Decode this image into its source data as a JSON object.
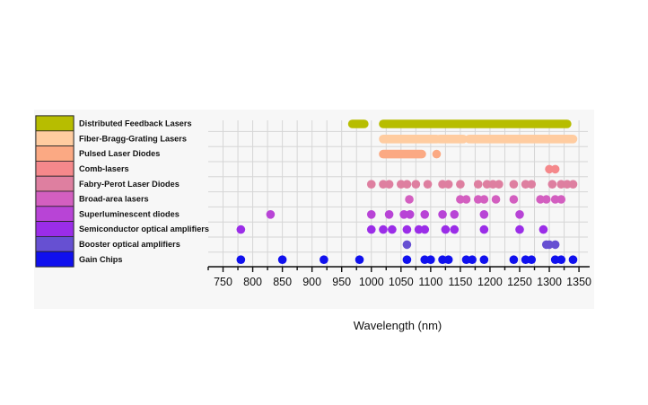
{
  "chart_data": {
    "type": "scatter",
    "xlabel": "Wavelength (nm)",
    "ylabel": "",
    "xlim": [
      725,
      1365
    ],
    "xticks": [
      750,
      800,
      850,
      900,
      950,
      1000,
      1050,
      1100,
      1150,
      1200,
      1250,
      1300,
      1350
    ],
    "grid": true,
    "legend_placement": "left",
    "categories": [
      "Distributed Feedback Lasers",
      "Fiber-Bragg-Grating Lasers",
      "Pulsed Laser Diodes",
      "Comb-lasers",
      "Fabry-Perot Laser Diodes",
      "Broad-area lasers",
      "Superluminescent diodes",
      "Semiconductor optical amplifiers",
      "Booster optical amplifiers",
      "Gain Chips"
    ],
    "colors": [
      "#b7bd00",
      "#ffcca0",
      "#fba983",
      "#f5888b",
      "#de7fa0",
      "#d35fc0",
      "#b844d6",
      "#9b2de8",
      "#6650d2",
      "#1010ee"
    ],
    "series": [
      {
        "name": "Distributed Feedback Lasers",
        "ranges": [
          [
            968,
            988
          ],
          [
            1020,
            1330
          ]
        ],
        "points": []
      },
      {
        "name": "Fiber-Bragg-Grating Lasers",
        "ranges": [
          [
            1020,
            1110
          ],
          [
            1115,
            1155
          ],
          [
            1165,
            1340
          ]
        ],
        "points": []
      },
      {
        "name": "Pulsed Laser Diodes",
        "ranges": [
          [
            1020,
            1085
          ]
        ],
        "points": [
          1110
        ]
      },
      {
        "name": "Comb-lasers",
        "ranges": [],
        "points": [
          1300,
          1310
        ]
      },
      {
        "name": "Fabry-Perot Laser Diodes",
        "ranges": [],
        "points": [
          1000,
          1020,
          1030,
          1050,
          1060,
          1075,
          1095,
          1120,
          1130,
          1150,
          1180,
          1195,
          1205,
          1215,
          1240,
          1260,
          1270,
          1305,
          1320,
          1330,
          1340
        ]
      },
      {
        "name": "Broad-area lasers",
        "ranges": [],
        "points": [
          1064,
          1150,
          1160,
          1180,
          1190,
          1210,
          1240,
          1285,
          1295,
          1310,
          1320
        ]
      },
      {
        "name": "Superluminescent diodes",
        "ranges": [],
        "points": [
          830,
          1000,
          1030,
          1055,
          1065,
          1090,
          1120,
          1140,
          1190,
          1250
        ]
      },
      {
        "name": "Semiconductor optical amplifiers",
        "ranges": [],
        "points": [
          780,
          1000,
          1020,
          1035,
          1060,
          1080,
          1090,
          1125,
          1140,
          1190,
          1250,
          1290
        ]
      },
      {
        "name": "Booster optical amplifiers",
        "ranges": [],
        "points": [
          1060,
          1295,
          1300,
          1310
        ]
      },
      {
        "name": "Gain Chips",
        "ranges": [],
        "points": [
          780,
          850,
          920,
          980,
          1060,
          1090,
          1100,
          1120,
          1130,
          1160,
          1170,
          1190,
          1240,
          1260,
          1270,
          1310,
          1320,
          1340
        ]
      }
    ]
  }
}
